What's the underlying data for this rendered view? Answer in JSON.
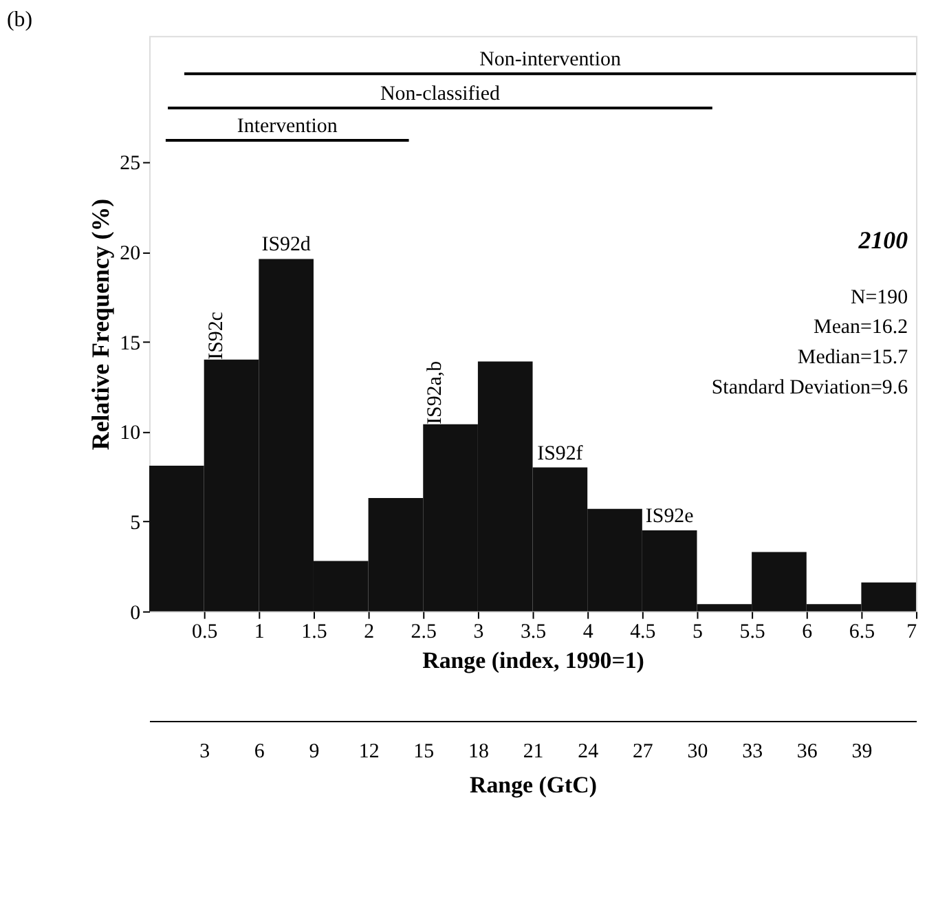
{
  "chart_data": {
    "type": "histogram",
    "title": "(b)",
    "xlabel": "Range (index, 1990=1)",
    "ylabel": "Relative Frequency (%)",
    "x2label": "Range (GtC)",
    "bins": [
      0,
      0.5,
      1,
      1.5,
      2,
      2.5,
      3,
      3.5,
      4,
      4.5,
      5,
      5.5,
      6,
      6.5,
      7
    ],
    "values": [
      8.1,
      14.0,
      19.6,
      2.8,
      6.3,
      10.4,
      13.9,
      8.0,
      5.7,
      4.5,
      0.4,
      3.3,
      0.4,
      1.6
    ],
    "color": "#111111",
    "xlim": [
      0,
      7
    ],
    "xticks": [
      0.5,
      1,
      1.5,
      2,
      2.5,
      3,
      3.5,
      4,
      4.5,
      5,
      5.5,
      6,
      6.5,
      7
    ],
    "ylim": [
      0,
      32
    ],
    "yticks": [
      0,
      5,
      10,
      15,
      20,
      25
    ],
    "x2lim": [
      0,
      42
    ],
    "x2ticks": [
      3,
      6,
      9,
      12,
      15,
      18,
      21,
      24,
      27,
      30,
      33,
      36,
      39
    ],
    "series": [
      {
        "name": "Non-intervention",
        "type": "line",
        "color": "#000000",
        "x": [
          0.32,
          7
        ],
        "values": [
          29.9,
          29.9
        ]
      },
      {
        "name": "Non-classified",
        "type": "line",
        "color": "#000000",
        "x": [
          0.17,
          5.14
        ],
        "values": [
          28.0,
          28.0
        ]
      },
      {
        "name": "Intervention",
        "type": "line",
        "color": "#000000",
        "x": [
          0.15,
          2.37
        ],
        "values": [
          26.2,
          26.2
        ]
      }
    ],
    "annotations": [
      {
        "text": "IS92c",
        "x": 0.75,
        "y": 14.0
      },
      {
        "text": "IS92d",
        "x": 1.25,
        "y": 19.6
      },
      {
        "text": "IS92a,b",
        "x": 2.75,
        "y": 10.4
      },
      {
        "text": "IS92f",
        "x": 3.75,
        "y": 8.0
      },
      {
        "text": "IS92e",
        "x": 4.75,
        "y": 4.5
      },
      "2100",
      "N=190",
      "Mean=16.2",
      "Median=15.7",
      "Standard Deviation=9.6"
    ],
    "grid": false
  }
}
